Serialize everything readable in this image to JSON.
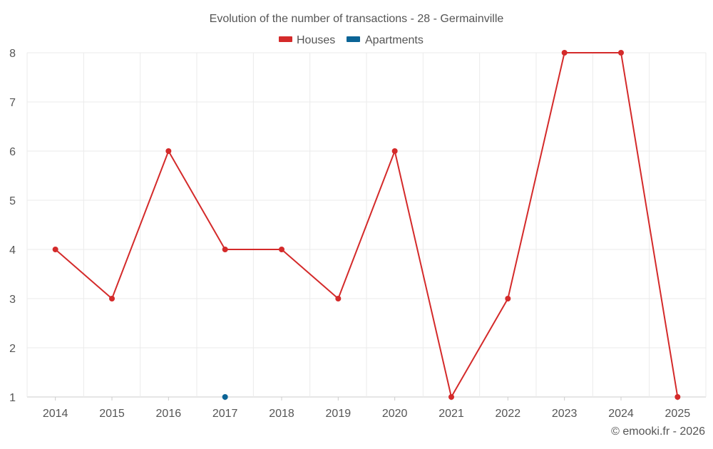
{
  "chart_data": {
    "type": "line",
    "title": "Evolution of the number of transactions - 28 - Germainville",
    "categories": [
      "2014",
      "2015",
      "2016",
      "2017",
      "2018",
      "2019",
      "2020",
      "2021",
      "2022",
      "2023",
      "2024",
      "2025"
    ],
    "series": [
      {
        "name": "Houses",
        "color": "#d42a2a",
        "values": [
          4,
          3,
          6,
          4,
          4,
          3,
          6,
          1,
          3,
          8,
          8,
          1
        ]
      },
      {
        "name": "Apartments",
        "color": "#0b6496",
        "values": [
          null,
          null,
          null,
          1,
          null,
          null,
          null,
          null,
          null,
          null,
          null,
          null
        ]
      }
    ],
    "ylim": [
      1,
      8
    ],
    "yticks": [
      "1",
      "2",
      "3",
      "4",
      "5",
      "6",
      "7",
      "8"
    ],
    "xlabel": "",
    "ylabel": "",
    "grid": true,
    "legend_position": "top-center"
  },
  "footer": {
    "copyright": "© emooki.fr - 2026"
  },
  "colors": {
    "grid": "#ebebeb",
    "axis_text": "#555555",
    "title_text": "#555555"
  }
}
